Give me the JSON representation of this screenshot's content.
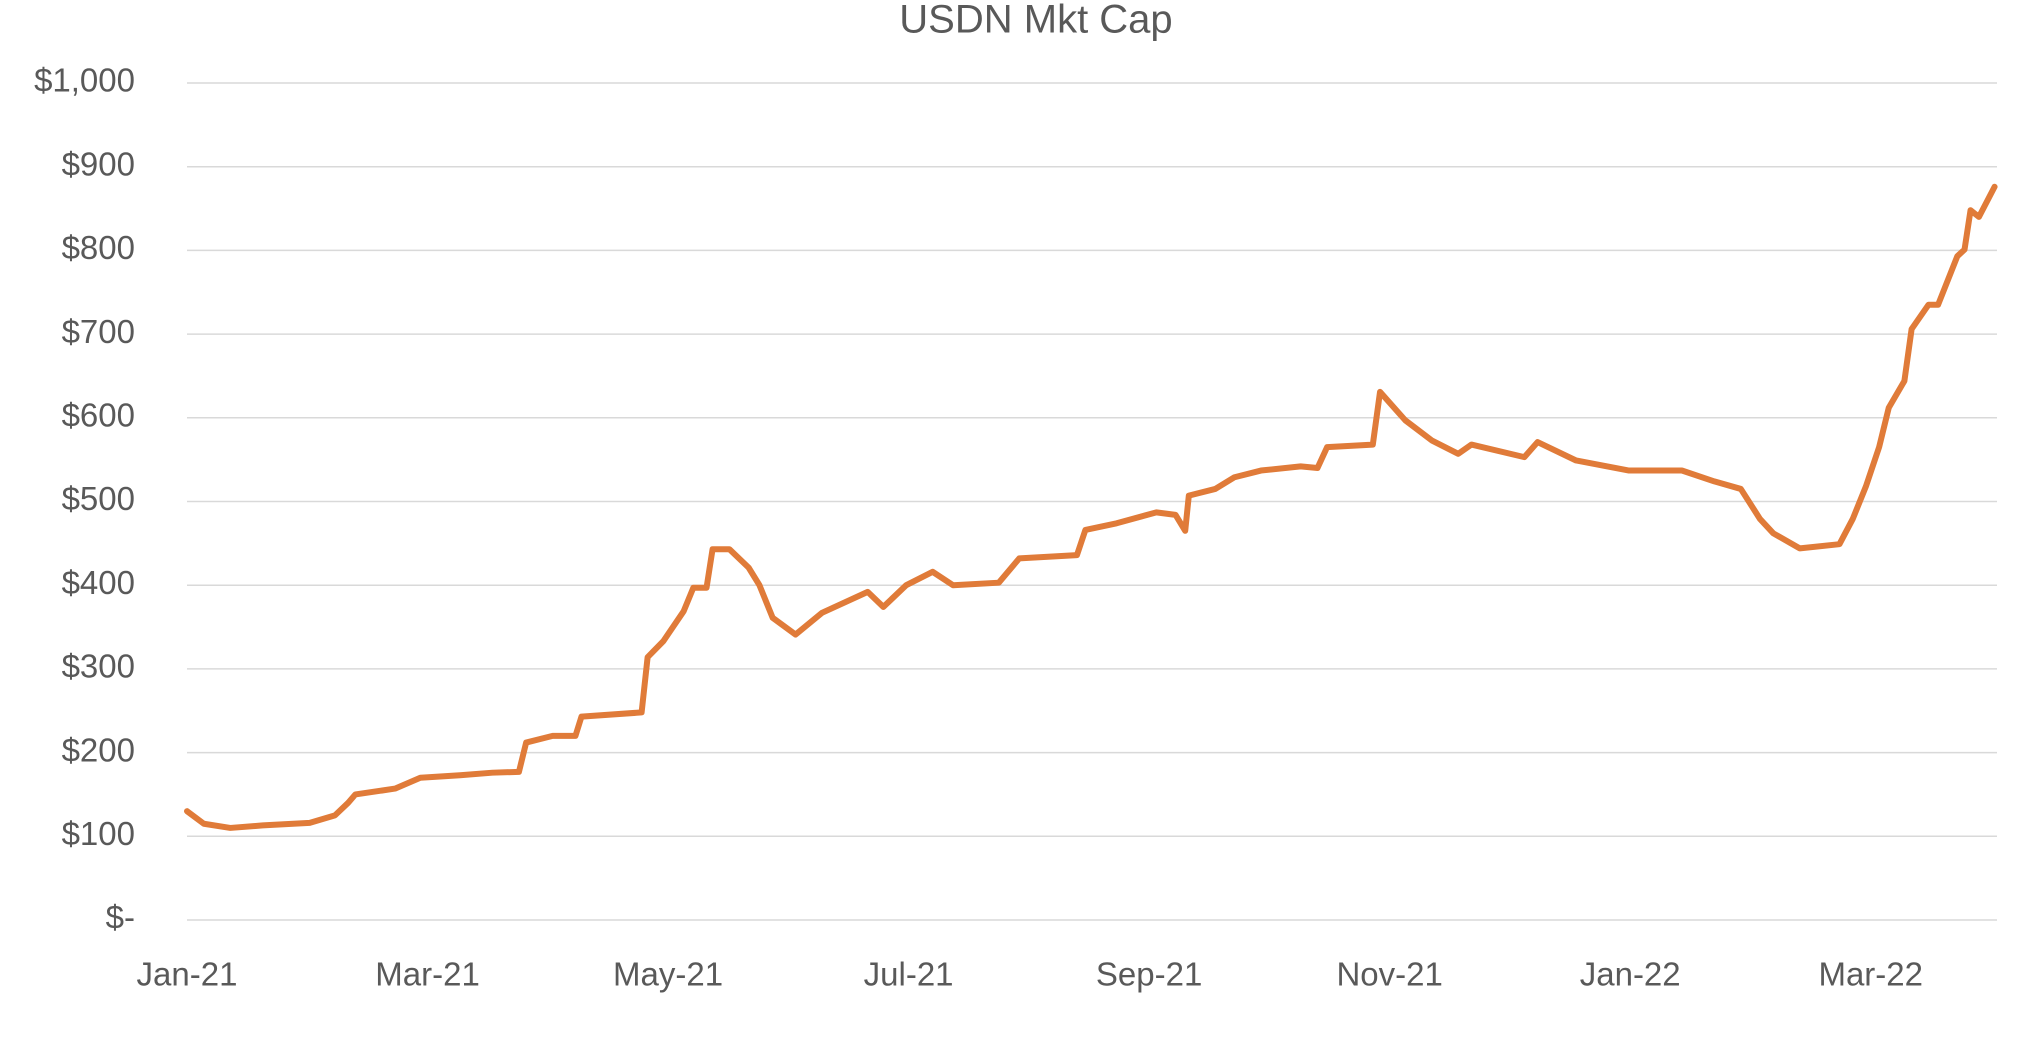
{
  "chart_data": {
    "type": "line",
    "title": "USDN Mkt Cap",
    "x": [
      0,
      0.14,
      0.36,
      0.63,
      1.02,
      1.23,
      1.34,
      1.4,
      1.73,
      1.94,
      2.27,
      2.54,
      2.76,
      2.82,
      3.04,
      3.23,
      3.28,
      3.78,
      3.83,
      3.96,
      4.13,
      4.21,
      4.32,
      4.37,
      4.51,
      4.67,
      4.76,
      4.87,
      5.06,
      5.28,
      5.66,
      5.79,
      5.98,
      6.2,
      6.37,
      6.75,
      6.92,
      7.4,
      7.47,
      7.73,
      8.06,
      8.22,
      8.3,
      8.33,
      8.55,
      8.71,
      8.93,
      9.26,
      9.4,
      9.48,
      9.86,
      9.92,
      10.13,
      10.35,
      10.57,
      10.68,
      11.12,
      11.23,
      11.55,
      11.99,
      12.43,
      12.7,
      12.92,
      13.08,
      13.19,
      13.41,
      13.74,
      13.85,
      13.96,
      14.07,
      14.15,
      14.28,
      14.34,
      14.48,
      14.56,
      14.72,
      14.78,
      14.83,
      14.9,
      15.03
    ],
    "series": [
      {
        "name": "USDN Mkt Cap",
        "color": "#e07b39",
        "values": [
          130,
          115,
          110,
          113,
          116,
          125,
          140,
          150,
          157,
          170,
          173,
          176,
          177,
          212,
          220,
          220,
          243,
          248,
          314,
          333,
          369,
          397,
          397,
          443,
          443,
          421,
          400,
          361,
          341,
          367,
          392,
          374,
          400,
          416,
          400,
          403,
          432,
          436,
          466,
          474,
          487,
          484,
          465,
          507,
          515,
          529,
          537,
          542,
          540,
          565,
          568,
          631,
          597,
          573,
          557,
          568,
          553,
          571,
          549,
          537,
          537,
          524,
          515,
          479,
          462,
          444,
          449,
          479,
          518,
          565,
          612,
          644,
          706,
          735,
          735,
          793,
          801,
          848,
          840,
          876
        ]
      }
    ],
    "xlim": [
      0,
      15.05
    ],
    "xticks": [
      {
        "value": 0,
        "label": "Jan-21"
      },
      {
        "value": 2,
        "label": "Mar-21"
      },
      {
        "value": 4,
        "label": "May-21"
      },
      {
        "value": 6,
        "label": "Jul-21"
      },
      {
        "value": 8,
        "label": "Sep-21"
      },
      {
        "value": 10,
        "label": "Nov-21"
      },
      {
        "value": 12,
        "label": "Jan-22"
      },
      {
        "value": 14,
        "label": "Mar-22"
      }
    ],
    "ylim": [
      0,
      1000
    ],
    "yticks": [
      {
        "value": 0,
        "label": "$-"
      },
      {
        "value": 100,
        "label": "$100"
      },
      {
        "value": 200,
        "label": "$200"
      },
      {
        "value": 300,
        "label": "$300"
      },
      {
        "value": 400,
        "label": "$400"
      },
      {
        "value": 500,
        "label": "$500"
      },
      {
        "value": 600,
        "label": "$600"
      },
      {
        "value": 700,
        "label": "$700"
      },
      {
        "value": 800,
        "label": "$800"
      },
      {
        "value": 900,
        "label": "$900"
      },
      {
        "value": 1000,
        "label": "$1,000"
      }
    ],
    "grid": true
  }
}
